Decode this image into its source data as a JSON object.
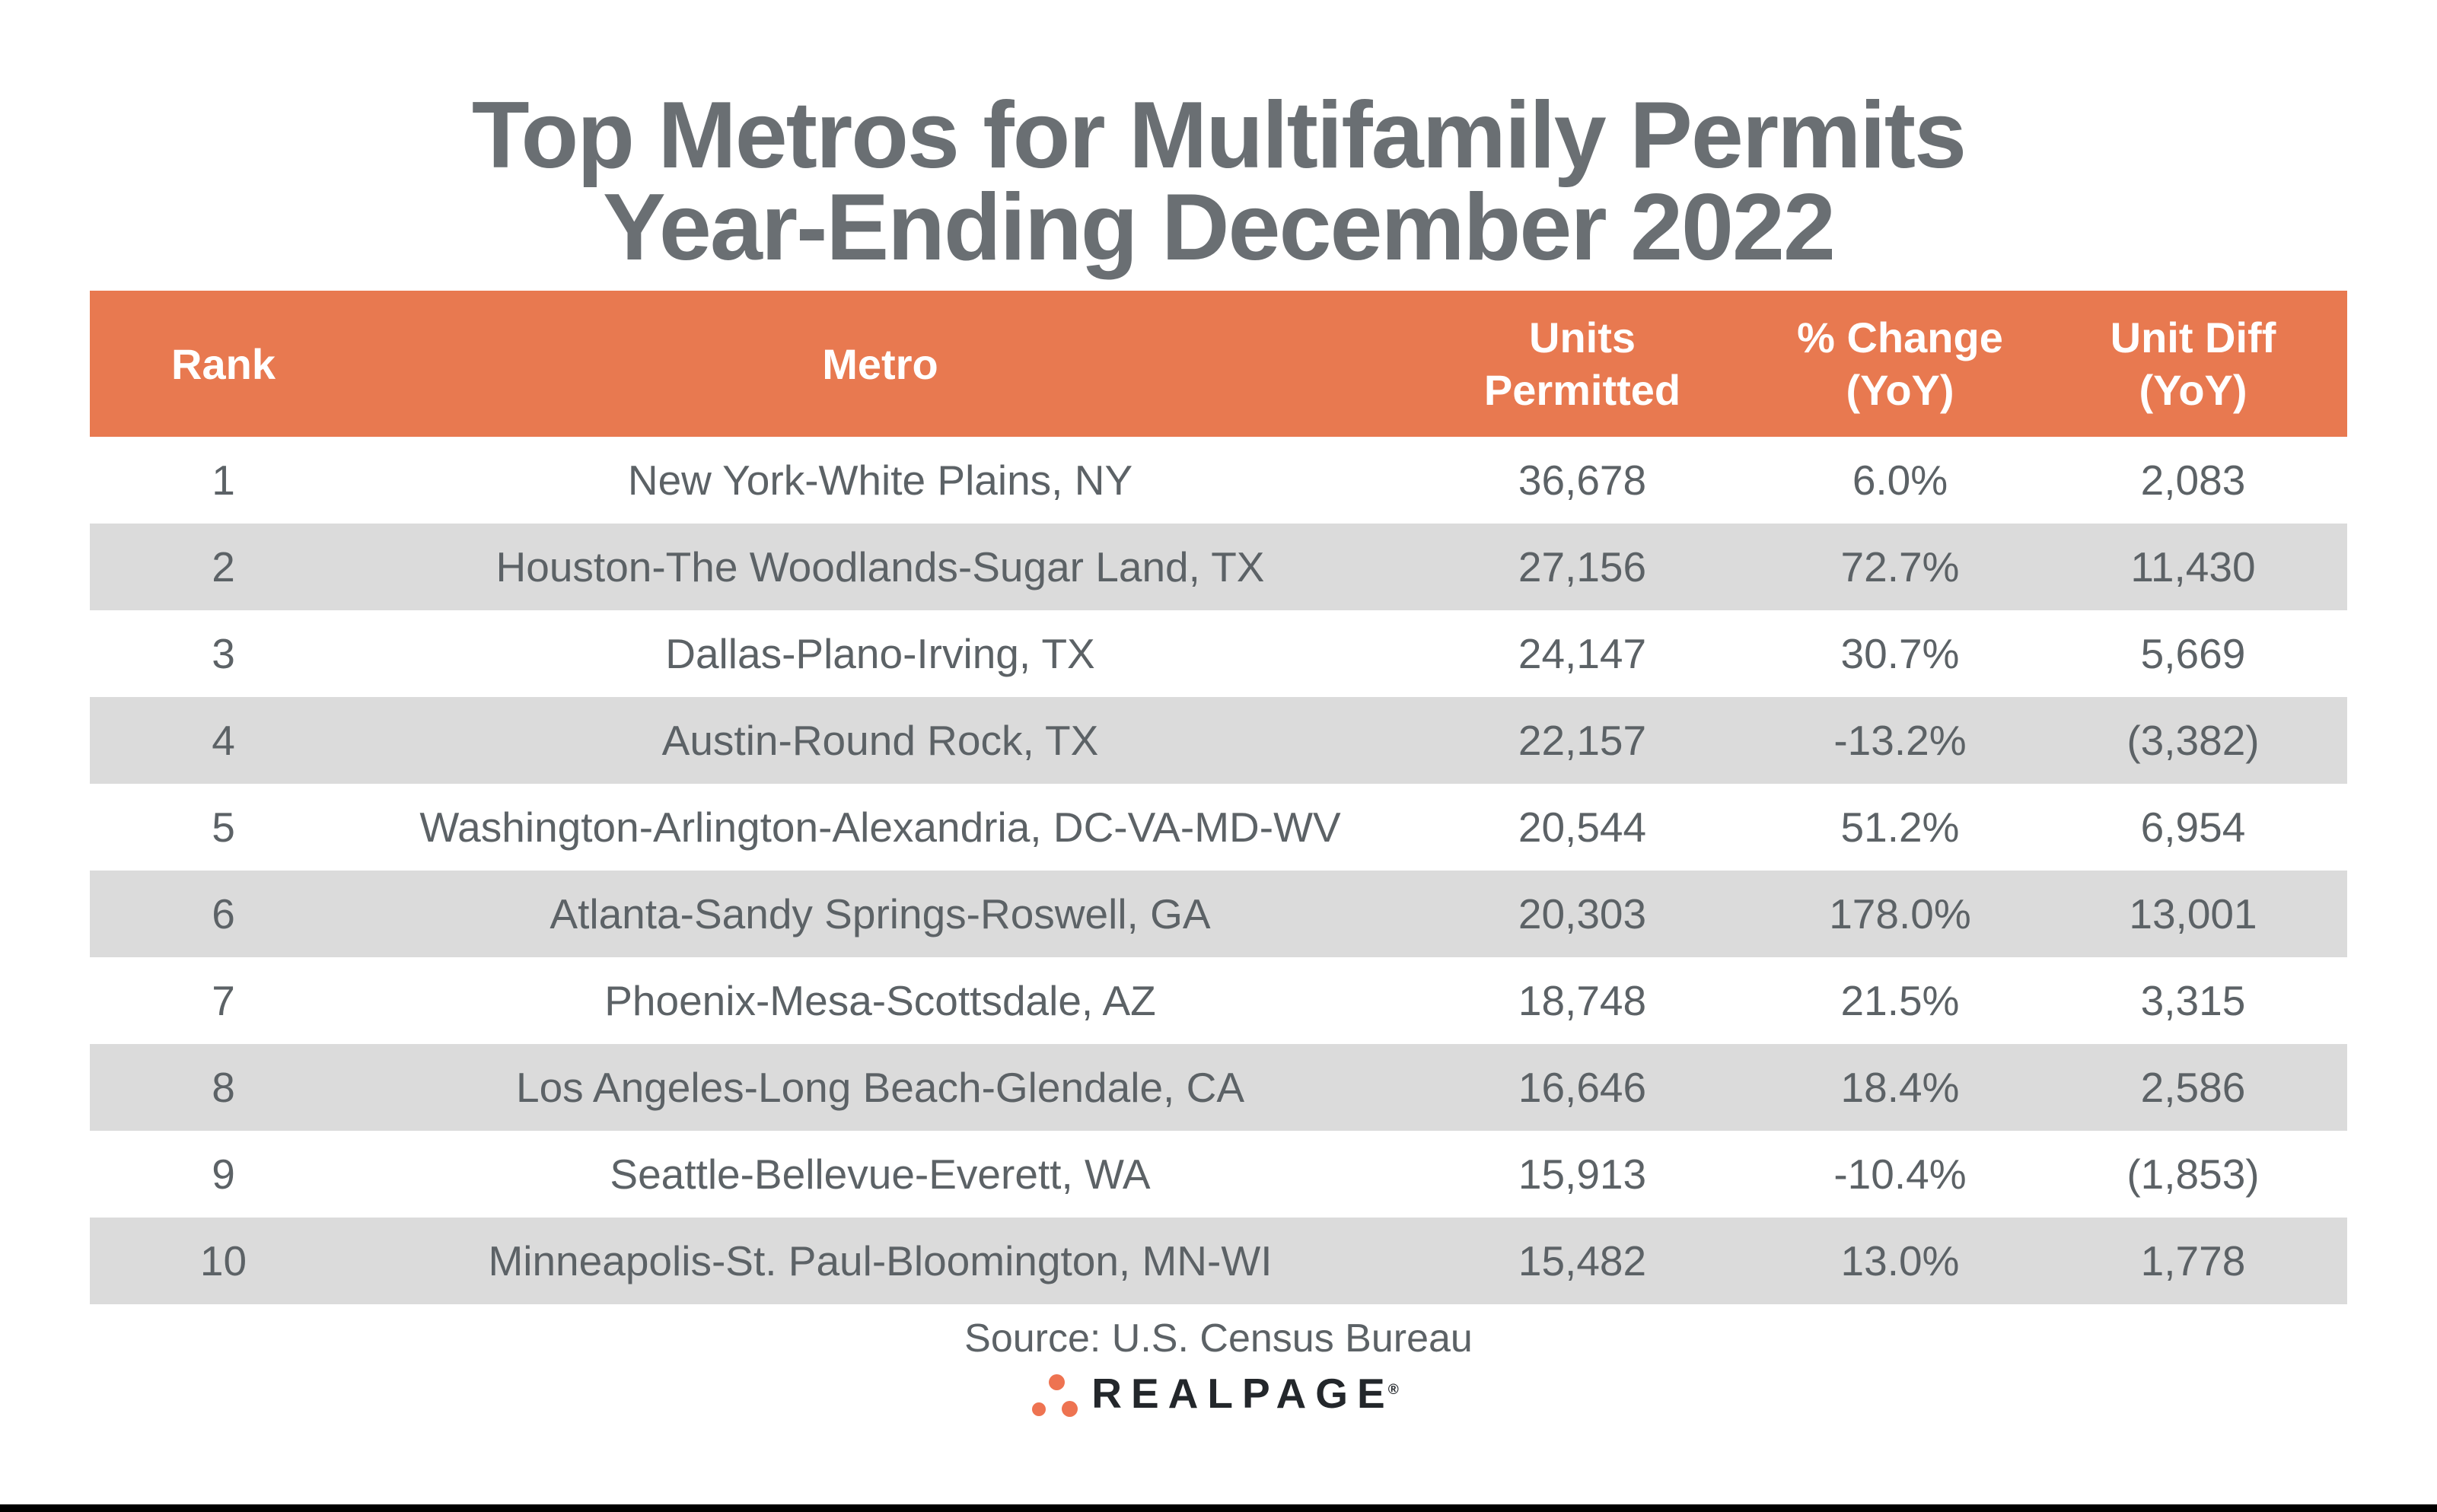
{
  "page": {
    "title_line1": "Top Metros for Multifamily Permits",
    "title_line2": "Year-Ending December 2022"
  },
  "table": {
    "headers": {
      "rank": "Rank",
      "metro": "Metro",
      "units_line1": "Units",
      "units_line2": "Permitted",
      "pct_line1": "% Change",
      "pct_line2": "(YoY)",
      "diff_line1": "Unit Diff",
      "diff_line2": "(YoY)"
    },
    "rows": [
      {
        "rank": "1",
        "metro": "New York-White Plains, NY",
        "units": "36,678",
        "pct": "6.0%",
        "diff": "2,083"
      },
      {
        "rank": "2",
        "metro": "Houston-The Woodlands-Sugar Land, TX",
        "units": "27,156",
        "pct": "72.7%",
        "diff": "11,430"
      },
      {
        "rank": "3",
        "metro": "Dallas-Plano-Irving, TX",
        "units": "24,147",
        "pct": "30.7%",
        "diff": "5,669"
      },
      {
        "rank": "4",
        "metro": "Austin-Round Rock, TX",
        "units": "22,157",
        "pct": "-13.2%",
        "diff": "(3,382)"
      },
      {
        "rank": "5",
        "metro": "Washington-Arlington-Alexandria, DC-VA-MD-WV",
        "units": "20,544",
        "pct": "51.2%",
        "diff": "6,954"
      },
      {
        "rank": "6",
        "metro": "Atlanta-Sandy Springs-Roswell, GA",
        "units": "20,303",
        "pct": "178.0%",
        "diff": "13,001"
      },
      {
        "rank": "7",
        "metro": "Phoenix-Mesa-Scottsdale, AZ",
        "units": "18,748",
        "pct": "21.5%",
        "diff": "3,315"
      },
      {
        "rank": "8",
        "metro": "Los Angeles-Long Beach-Glendale, CA",
        "units": "16,646",
        "pct": "18.4%",
        "diff": "2,586"
      },
      {
        "rank": "9",
        "metro": "Seattle-Bellevue-Everett, WA",
        "units": "15,913",
        "pct": "-10.4%",
        "diff": "(1,853)"
      },
      {
        "rank": "10",
        "metro": "Minneapolis-St. Paul-Bloomington, MN-WI",
        "units": "15,482",
        "pct": "13.0%",
        "diff": "1,778"
      }
    ]
  },
  "footer": {
    "source": "Source: U.S. Census Bureau",
    "logo_text": "REALPAGE",
    "logo_registered": "®"
  },
  "colors": {
    "accent_orange": "#E87950",
    "logo_dot_orange": "#EE7351",
    "stripe_gray": "#DBDBDB",
    "title_text": "#6A6F73",
    "body_text": "#5C6266",
    "header_text": "#FFFFFF",
    "logo_text_color": "#23272B",
    "bottom_bar": "#000000"
  },
  "chart_data": {
    "type": "table",
    "title": "Top Metros for Multifamily Permits Year-Ending December 2022",
    "columns": [
      "Rank",
      "Metro",
      "Units Permitted",
      "% Change (YoY)",
      "Unit Diff (YoY)"
    ],
    "rows": [
      [
        1,
        "New York-White Plains, NY",
        36678,
        6.0,
        2083
      ],
      [
        2,
        "Houston-The Woodlands-Sugar Land, TX",
        27156,
        72.7,
        11430
      ],
      [
        3,
        "Dallas-Plano-Irving, TX",
        24147,
        30.7,
        5669
      ],
      [
        4,
        "Austin-Round Rock, TX",
        22157,
        -13.2,
        -3382
      ],
      [
        5,
        "Washington-Arlington-Alexandria, DC-VA-MD-WV",
        20544,
        51.2,
        6954
      ],
      [
        6,
        "Atlanta-Sandy Springs-Roswell, GA",
        20303,
        178.0,
        13001
      ],
      [
        7,
        "Phoenix-Mesa-Scottsdale, AZ",
        18748,
        21.5,
        3315
      ],
      [
        8,
        "Los Angeles-Long Beach-Glendale, CA",
        16646,
        18.4,
        2586
      ],
      [
        9,
        "Seattle-Bellevue-Everett, WA",
        15913,
        -10.4,
        -1853
      ],
      [
        10,
        "Minneapolis-St. Paul-Bloomington, MN-WI",
        15482,
        13.0,
        1778
      ]
    ],
    "source": "Source: U.S. Census Bureau",
    "notes": "Negative Unit Diff values shown in parentheses; zebra striping on even ranks"
  }
}
